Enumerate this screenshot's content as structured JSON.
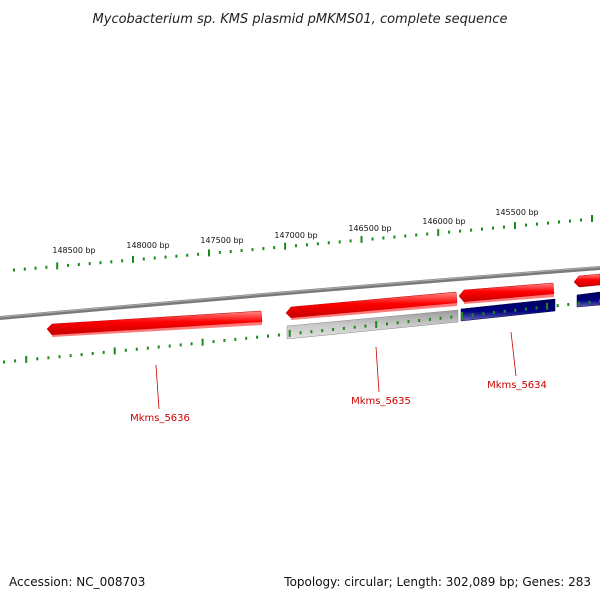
{
  "title": "Mycobacterium sp. KMS plasmid pMKMS01, complete sequence",
  "colors": {
    "forward_gene": "#ff0000",
    "reverse_gene_other": "#b9b9b9",
    "reverse_gene_dark": "#000080",
    "tick": "#1a8a1a",
    "backbone": "#808080",
    "label": "#cc0000"
  },
  "ticks": [
    {
      "label": "148500 bp"
    },
    {
      "label": "148000 bp"
    },
    {
      "label": "147500 bp"
    },
    {
      "label": "147000 bp"
    },
    {
      "label": "146500 bp"
    },
    {
      "label": "146000 bp"
    },
    {
      "label": "145500 bp"
    }
  ],
  "gene_labels": [
    {
      "name": "Mkms_5636"
    },
    {
      "name": "Mkms_5635"
    },
    {
      "name": "Mkms_5634"
    }
  ],
  "footer": {
    "accession": "Accession: NC_008703",
    "summary": "Topology: circular; Length: 302,089 bp; Genes: 283"
  }
}
